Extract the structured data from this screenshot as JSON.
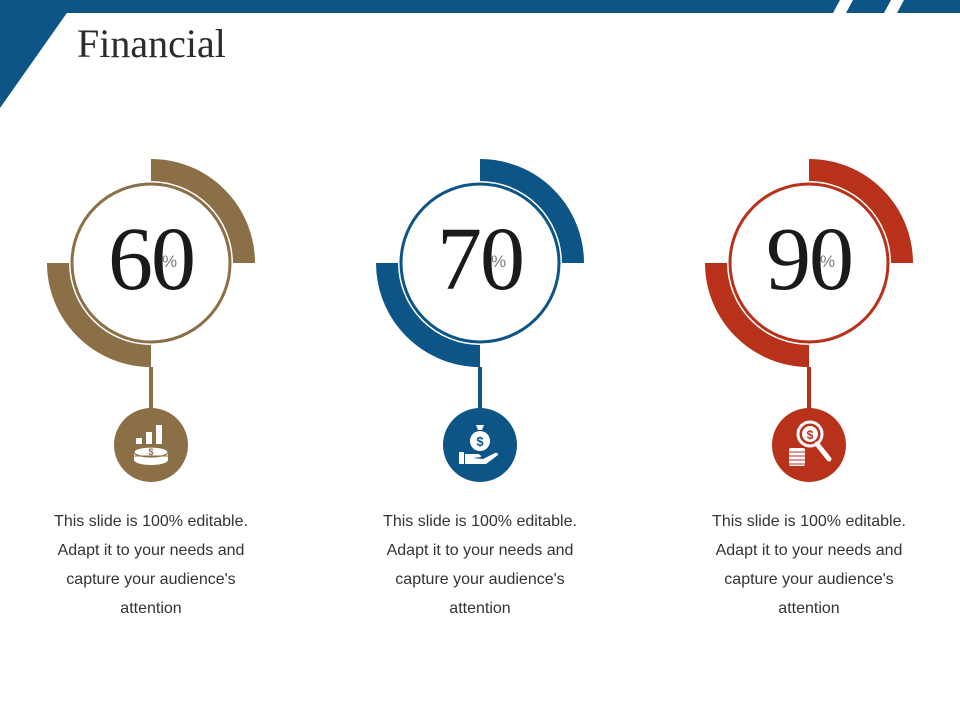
{
  "title": "Financial",
  "colors": {
    "brown": "#8b6f47",
    "blue": "#0e5587",
    "red": "#b8311a",
    "header": "#0e5587"
  },
  "cards": [
    {
      "value": "60",
      "unit": "%",
      "percent": 60,
      "color": "#8b6f47",
      "icon": "coins-bar-chart-icon",
      "text": "This slide is 100% editable. Adapt it to your needs and capture your audience's attention"
    },
    {
      "value": "70",
      "unit": "%",
      "percent": 70,
      "color": "#0e5587",
      "icon": "money-bag-hand-icon",
      "text": "This slide is 100% editable. Adapt it to your needs and capture your audience's attention"
    },
    {
      "value": "90",
      "unit": "%",
      "percent": 90,
      "color": "#b8311a",
      "icon": "magnifier-dollar-coins-icon",
      "text": "This slide is 100% editable. Adapt it to your needs and capture your audience's attention"
    }
  ]
}
